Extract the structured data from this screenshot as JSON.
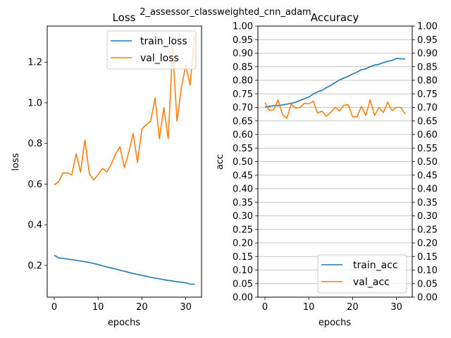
{
  "suptitle": "2_assessor_classweighted_cnn_adam",
  "colors": {
    "train": "#1f77b4",
    "val": "#ff7f0e",
    "grid": "#b0b0b0",
    "legend_border": "#cccccc"
  },
  "chart_data": [
    {
      "type": "line",
      "title": "Loss",
      "xlabel": "epochs",
      "ylabel": "loss",
      "xlim": [
        -1.6,
        33.6
      ],
      "ylim": [
        0.0435,
        1.3775
      ],
      "xticks": [
        0,
        10,
        20,
        30
      ],
      "xtick_labels": [
        "0",
        "10",
        "20",
        "30"
      ],
      "yticks": [
        0.2,
        0.4,
        0.6,
        0.8,
        1.0,
        1.2
      ],
      "ytick_labels": [
        "0.2",
        "0.4",
        "0.6",
        "0.8",
        "1.0",
        "1.2"
      ],
      "grid": false,
      "legend_position": "top-right",
      "x": [
        0,
        1,
        2,
        3,
        4,
        5,
        6,
        7,
        8,
        9,
        10,
        11,
        12,
        13,
        14,
        15,
        16,
        17,
        18,
        19,
        20,
        21,
        22,
        23,
        24,
        25,
        26,
        27,
        28,
        29,
        30,
        31,
        32
      ],
      "series": [
        {
          "name": "train_loss",
          "color": "#1f77b4",
          "values": [
            0.25,
            0.237,
            0.234,
            0.231,
            0.228,
            0.225,
            0.221,
            0.218,
            0.214,
            0.209,
            0.204,
            0.198,
            0.192,
            0.187,
            0.182,
            0.176,
            0.171,
            0.165,
            0.16,
            0.155,
            0.151,
            0.146,
            0.141,
            0.137,
            0.134,
            0.129,
            0.126,
            0.123,
            0.119,
            0.117,
            0.114,
            0.108,
            0.107
          ]
        },
        {
          "name": "val_loss",
          "color": "#ff7f0e",
          "values": [
            0.596,
            0.611,
            0.655,
            0.655,
            0.645,
            0.749,
            0.659,
            0.817,
            0.652,
            0.62,
            0.646,
            0.677,
            0.659,
            0.697,
            0.748,
            0.784,
            0.68,
            0.756,
            0.849,
            0.706,
            0.872,
            0.892,
            0.909,
            1.023,
            0.823,
            0.976,
            0.823,
            1.27,
            0.909,
            1.075,
            1.182,
            1.087,
            1.33
          ]
        }
      ]
    },
    {
      "type": "line",
      "title": "Accuracy",
      "xlabel": "epochs",
      "ylabel": "acc",
      "xlim": [
        -1.6,
        33.6
      ],
      "ylim": [
        0.0,
        1.0
      ],
      "xticks": [
        0,
        10,
        20,
        30
      ],
      "xtick_labels": [
        "0",
        "10",
        "20",
        "30"
      ],
      "yticks": [
        0.0,
        0.05,
        0.1,
        0.15,
        0.2,
        0.25,
        0.3,
        0.35,
        0.4,
        0.45,
        0.5,
        0.55,
        0.6,
        0.65,
        0.7,
        0.75,
        0.8,
        0.85,
        0.9,
        0.95,
        1.0
      ],
      "ytick_labels": [
        "0.00",
        "0.05",
        "0.10",
        "0.15",
        "0.20",
        "0.25",
        "0.30",
        "0.35",
        "0.40",
        "0.45",
        "0.50",
        "0.55",
        "0.60",
        "0.65",
        "0.70",
        "0.75",
        "0.80",
        "0.85",
        "0.90",
        "0.95",
        "1.00"
      ],
      "grid": true,
      "secondary_y_labels": true,
      "legend_position": "bottom-right",
      "x": [
        0,
        1,
        2,
        3,
        4,
        5,
        6,
        7,
        8,
        9,
        10,
        11,
        12,
        13,
        14,
        15,
        16,
        17,
        18,
        19,
        20,
        21,
        22,
        23,
        24,
        25,
        26,
        27,
        28,
        29,
        30,
        31,
        32
      ],
      "series": [
        {
          "name": "train_acc",
          "color": "#1f77b4",
          "values": [
            0.701,
            0.704,
            0.706,
            0.707,
            0.709,
            0.712,
            0.715,
            0.719,
            0.726,
            0.732,
            0.738,
            0.749,
            0.757,
            0.763,
            0.773,
            0.781,
            0.791,
            0.801,
            0.808,
            0.815,
            0.823,
            0.83,
            0.839,
            0.842,
            0.85,
            0.856,
            0.859,
            0.865,
            0.87,
            0.873,
            0.881,
            0.879,
            0.879
          ]
        },
        {
          "name": "val_acc",
          "color": "#ff7f0e",
          "values": [
            0.717,
            0.689,
            0.691,
            0.727,
            0.674,
            0.66,
            0.712,
            0.697,
            0.7,
            0.715,
            0.713,
            0.723,
            0.679,
            0.686,
            0.667,
            0.681,
            0.7,
            0.687,
            0.708,
            0.71,
            0.665,
            0.665,
            0.703,
            0.67,
            0.728,
            0.67,
            0.7,
            0.681,
            0.719,
            0.688,
            0.7,
            0.7,
            0.675
          ]
        }
      ]
    }
  ]
}
